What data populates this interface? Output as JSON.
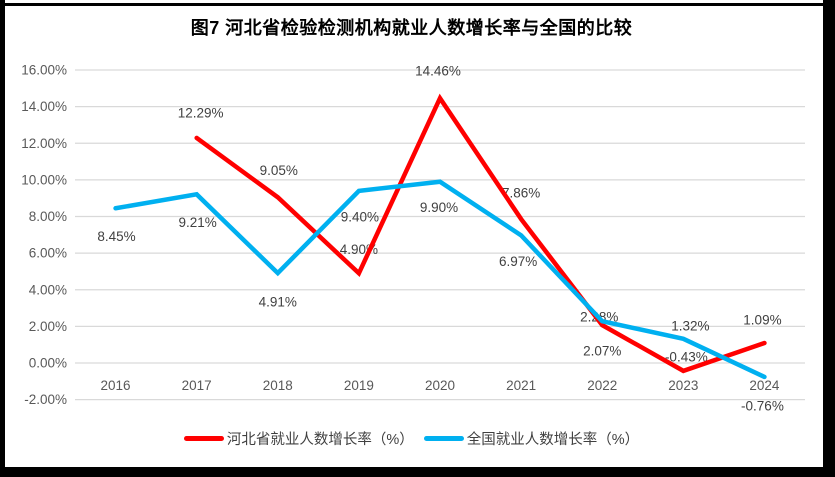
{
  "chart_data": {
    "type": "line",
    "title": "图7 河北省检验检测机构就业人数增长率与全国的比较",
    "categories": [
      "2016",
      "2017",
      "2018",
      "2019",
      "2020",
      "2021",
      "2022",
      "2023",
      "2024"
    ],
    "series": [
      {
        "name": "河北省就业人数增长率（%）",
        "color": "#FF0000",
        "values": [
          null,
          12.29,
          9.05,
          4.9,
          14.46,
          7.86,
          2.07,
          -0.43,
          1.09
        ],
        "labels": [
          "",
          "12.29%",
          "9.05%",
          "4.90%",
          "14.46%",
          "7.86%",
          "2.07%",
          "-0.43%",
          "1.09%"
        ]
      },
      {
        "name": "全国就业人数增长率（%）",
        "color": "#00B0F0",
        "values": [
          8.45,
          9.21,
          4.91,
          9.4,
          9.9,
          6.97,
          2.28,
          1.32,
          -0.76
        ],
        "labels": [
          "8.45%",
          "9.21%",
          "4.91%",
          "9.40%",
          "9.90%",
          "6.97%",
          "2.28%",
          "1.32%",
          "-0.76%"
        ]
      }
    ],
    "y_axis": {
      "min": -2,
      "max": 16,
      "step": 2,
      "tick_labels": [
        "16.00%",
        "14.00%",
        "12.00%",
        "10.00%",
        "8.00%",
        "6.00%",
        "4.00%",
        "2.00%",
        "0.00%",
        "-2.00%"
      ]
    },
    "grid": true,
    "legend_position": "bottom"
  },
  "colors": {
    "gridline": "#D9D9D9",
    "axis_text": "#595959",
    "data_label": "#404040",
    "frame": "#000000"
  }
}
